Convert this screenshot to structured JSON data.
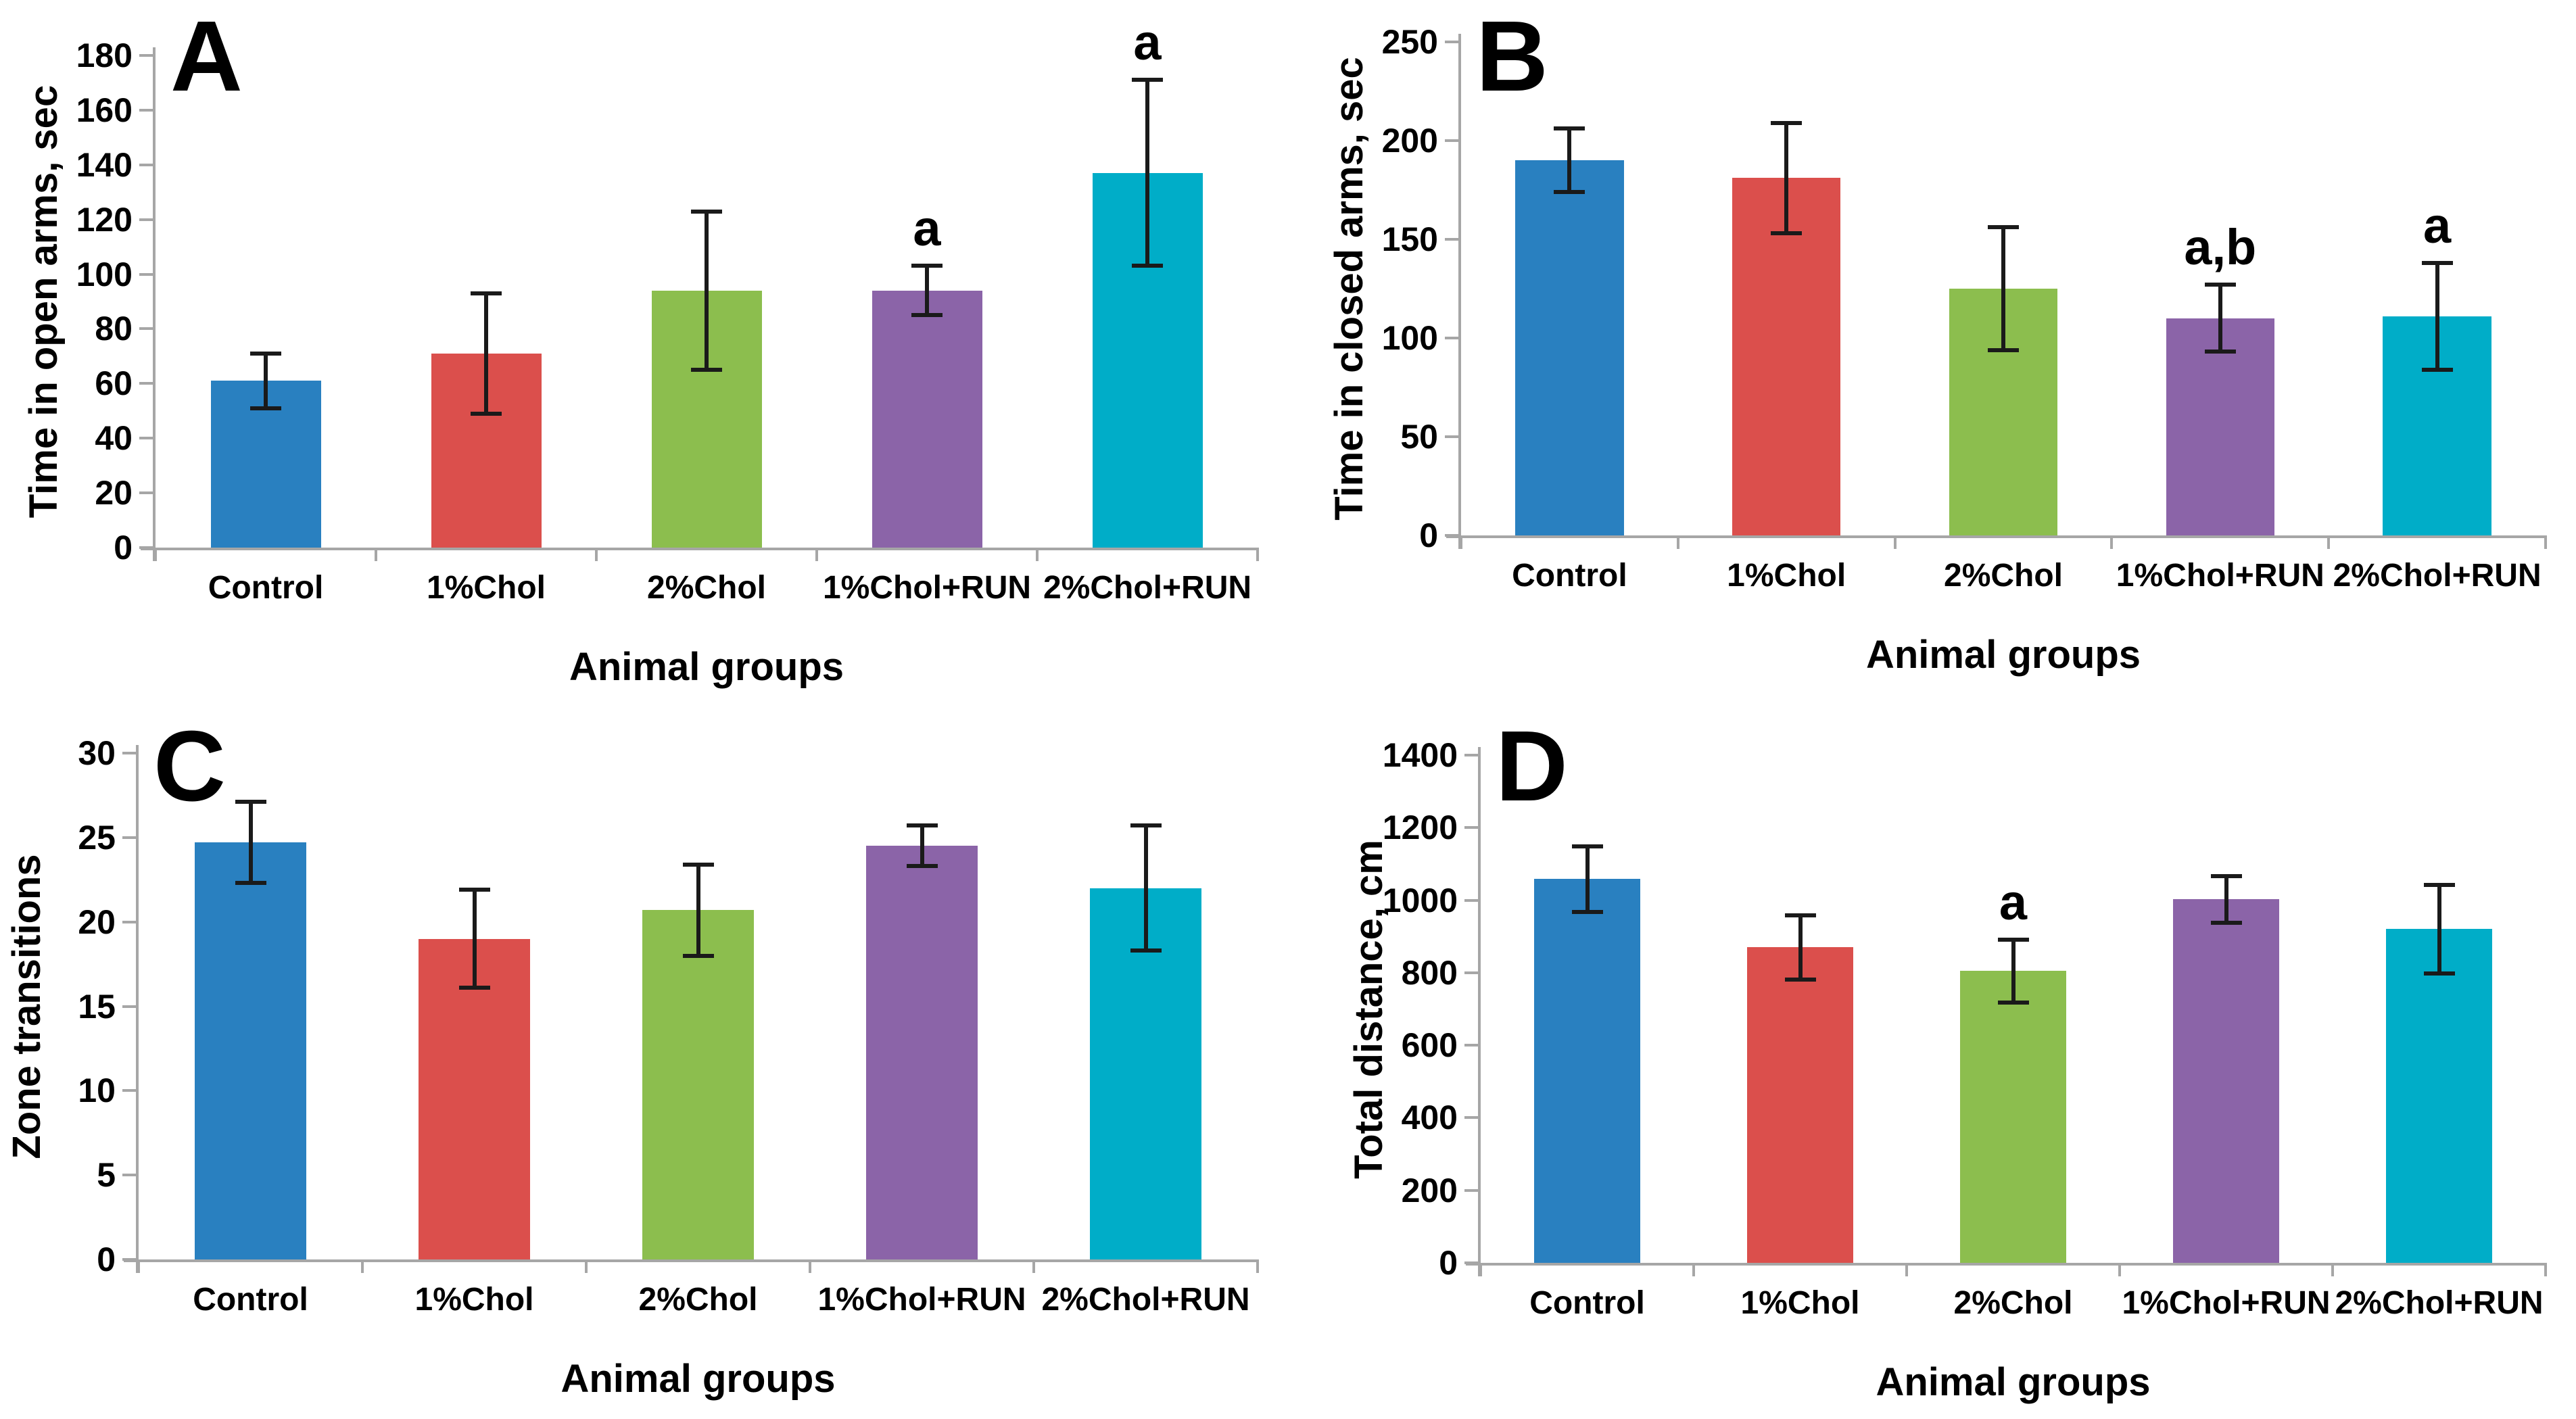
{
  "figure": {
    "description": "Four-panel bar chart figure of animal behavior measures by group",
    "palette": [
      "#2980C0",
      "#DB4F4C",
      "#8CBE4E",
      "#8B64A8",
      "#00ADC8"
    ],
    "axis_color": "#a6a6a6",
    "error_bar_color": "#1a1a1a",
    "text_color": "#000000",
    "grid": "off",
    "legend": "none"
  },
  "chart_data": [
    {
      "panel": "A",
      "type": "bar",
      "ylabel": "Time in open arms, sec",
      "xlabel": "Animal groups",
      "categories": [
        "Control",
        "1%Chol",
        "2%Chol",
        "1%Chol+RUN",
        "2%Chol+RUN"
      ],
      "values": [
        61,
        71,
        94,
        94,
        137
      ],
      "errors": [
        10,
        22,
        29,
        9,
        34
      ],
      "annotations": [
        "",
        "",
        "",
        "a",
        "a"
      ],
      "ylim": [
        0,
        180
      ],
      "ytick_step": 20
    },
    {
      "panel": "B",
      "type": "bar",
      "ylabel": "Time in closed arms, sec",
      "xlabel": "Animal groups",
      "categories": [
        "Control",
        "1%Chol",
        "2%Chol",
        "1%Chol+RUN",
        "2%Chol+RUN"
      ],
      "values": [
        190,
        181,
        125,
        110,
        111
      ],
      "errors": [
        16,
        28,
        31,
        17,
        27
      ],
      "annotations": [
        "",
        "",
        "",
        "a,b",
        "a"
      ],
      "ylim": [
        0,
        250
      ],
      "ytick_step": 50
    },
    {
      "panel": "C",
      "type": "bar",
      "ylabel": "Zone transitions",
      "xlabel": "Animal groups",
      "categories": [
        "Control",
        "1%Chol",
        "2%Chol",
        "1%Chol+RUN",
        "2%Chol+RUN"
      ],
      "values": [
        24.7,
        19.0,
        20.7,
        24.5,
        22.0
      ],
      "errors": [
        2.4,
        2.9,
        2.7,
        1.2,
        3.7
      ],
      "annotations": [
        "",
        "",
        "",
        "",
        ""
      ],
      "ylim": [
        0,
        30
      ],
      "ytick_step": 5
    },
    {
      "panel": "D",
      "type": "bar",
      "ylabel": "Total distance, cm",
      "xlabel": "Animal groups",
      "categories": [
        "Control",
        "1%Chol",
        "2%Chol",
        "1%Chol+RUN",
        "2%Chol+RUN"
      ],
      "values": [
        1058,
        870,
        805,
        1002,
        920
      ],
      "errors": [
        90,
        88,
        87,
        64,
        122
      ],
      "annotations": [
        "",
        "",
        "a",
        "",
        ""
      ],
      "ylim": [
        0,
        1400
      ],
      "ytick_step": 200
    }
  ]
}
